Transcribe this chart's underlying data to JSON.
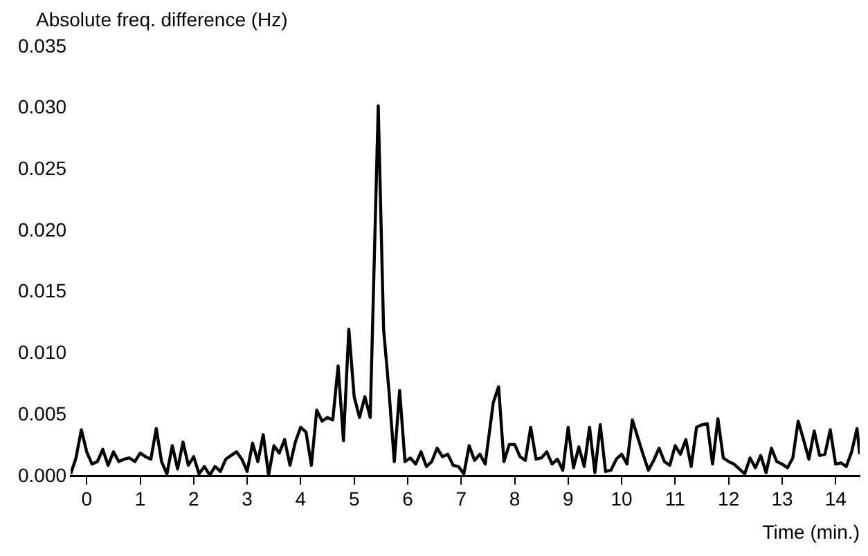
{
  "chart_data": {
    "type": "line",
    "ylabel": "Absolute freq. difference (Hz)",
    "xlabel": "Time (min.)",
    "x": [
      -0.3,
      -0.2,
      -0.1,
      0,
      0.1,
      0.2,
      0.3,
      0.4,
      0.5,
      0.6,
      0.7,
      0.8,
      0.9,
      1.0,
      1.1,
      1.2,
      1.3,
      1.4,
      1.5,
      1.6,
      1.7,
      1.8,
      1.9,
      2.0,
      2.1,
      2.2,
      2.3,
      2.4,
      2.5,
      2.6,
      2.7,
      2.8,
      2.9,
      3.0,
      3.1,
      3.2,
      3.3,
      3.4,
      3.5,
      3.6,
      3.7,
      3.8,
      3.9,
      4.0,
      4.1,
      4.2,
      4.3,
      4.4,
      4.5,
      4.6,
      4.7,
      4.8,
      4.9,
      5.0,
      5.1,
      5.2,
      5.3,
      5.45,
      5.55,
      5.65,
      5.75,
      5.85,
      5.95,
      6.05,
      6.15,
      6.25,
      6.35,
      6.45,
      6.55,
      6.65,
      6.75,
      6.85,
      6.95,
      7.05,
      7.15,
      7.25,
      7.35,
      7.45,
      7.6,
      7.7,
      7.8,
      7.9,
      8.0,
      8.1,
      8.2,
      8.3,
      8.4,
      8.5,
      8.6,
      8.7,
      8.8,
      8.9,
      9.0,
      9.1,
      9.2,
      9.3,
      9.4,
      9.5,
      9.6,
      9.7,
      9.8,
      9.9,
      10.0,
      10.1,
      10.2,
      10.3,
      10.4,
      10.5,
      10.6,
      10.7,
      10.8,
      10.9,
      11.0,
      11.1,
      11.2,
      11.3,
      11.4,
      11.5,
      11.6,
      11.7,
      11.8,
      11.9,
      12.0,
      12.1,
      12.2,
      12.3,
      12.4,
      12.5,
      12.6,
      12.7,
      12.8,
      12.9,
      13.0,
      13.1,
      13.2,
      13.3,
      13.4,
      13.5,
      13.6,
      13.7,
      13.8,
      13.9,
      14.0,
      14.1,
      14.2,
      14.3,
      14.4,
      14.45
    ],
    "values": [
      0.0002,
      0.0015,
      0.0038,
      0.002,
      0.001,
      0.0012,
      0.0022,
      0.0009,
      0.002,
      0.0012,
      0.0014,
      0.0015,
      0.0012,
      0.0019,
      0.0016,
      0.0014,
      0.0039,
      0.0012,
      0.0002,
      0.0025,
      0.0006,
      0.0028,
      0.0009,
      0.0016,
      0.0002,
      0.0008,
      0.0001,
      0.0008,
      0.0004,
      0.0014,
      0.0017,
      0.002,
      0.0014,
      0.0004,
      0.0027,
      0.0012,
      0.0034,
      0.0001,
      0.0025,
      0.0019,
      0.003,
      0.0009,
      0.0028,
      0.004,
      0.0036,
      0.0009,
      0.0054,
      0.0045,
      0.0048,
      0.0046,
      0.009,
      0.0029,
      0.012,
      0.0065,
      0.0048,
      0.0065,
      0.0048,
      0.0302,
      0.012,
      0.007,
      0.0012,
      0.007,
      0.0012,
      0.0015,
      0.001,
      0.002,
      0.0008,
      0.0012,
      0.0023,
      0.0016,
      0.0018,
      0.0009,
      0.0008,
      0.0002,
      0.0025,
      0.0013,
      0.0018,
      0.001,
      0.006,
      0.0073,
      0.0012,
      0.0026,
      0.0026,
      0.0016,
      0.0013,
      0.004,
      0.0014,
      0.0015,
      0.002,
      0.001,
      0.0014,
      0.0005,
      0.004,
      0.0007,
      0.0024,
      0.0008,
      0.004,
      0.0003,
      0.0042,
      0.0004,
      0.0005,
      0.0014,
      0.0018,
      0.001,
      0.0046,
      0.0032,
      0.0018,
      0.0005,
      0.0013,
      0.0023,
      0.0012,
      0.0009,
      0.0025,
      0.0018,
      0.003,
      0.0008,
      0.004,
      0.0042,
      0.0043,
      0.001,
      0.0047,
      0.0015,
      0.0012,
      0.001,
      0.0006,
      0.0002,
      0.0015,
      0.0007,
      0.0017,
      0.0003,
      0.0023,
      0.0012,
      0.001,
      0.0007,
      0.0015,
      0.0045,
      0.003,
      0.0014,
      0.0037,
      0.0017,
      0.0018,
      0.0038,
      0.001,
      0.0011,
      0.0008,
      0.002,
      0.0039,
      0.0018
    ],
    "color": "#000000",
    "xlim": [
      -0.3,
      14.45
    ],
    "xticks": [
      0,
      1,
      2,
      3,
      4,
      5,
      6,
      7,
      8,
      9,
      10,
      11,
      12,
      13,
      14
    ],
    "ylim": [
      0,
      0.035
    ],
    "yticks": [
      {
        "value": 0,
        "label": "0.000"
      },
      {
        "value": 0.005,
        "label": "0.005"
      },
      {
        "value": 0.01,
        "label": "0.010"
      },
      {
        "value": 0.015,
        "label": "0.015"
      },
      {
        "value": 0.02,
        "label": "0.020"
      },
      {
        "value": 0.025,
        "label": "0.025"
      },
      {
        "value": 0.03,
        "label": "0.030"
      },
      {
        "value": 0.035,
        "label": "0.035"
      }
    ],
    "grid": false,
    "legend": false,
    "marker": "none",
    "line_style": "solid"
  }
}
